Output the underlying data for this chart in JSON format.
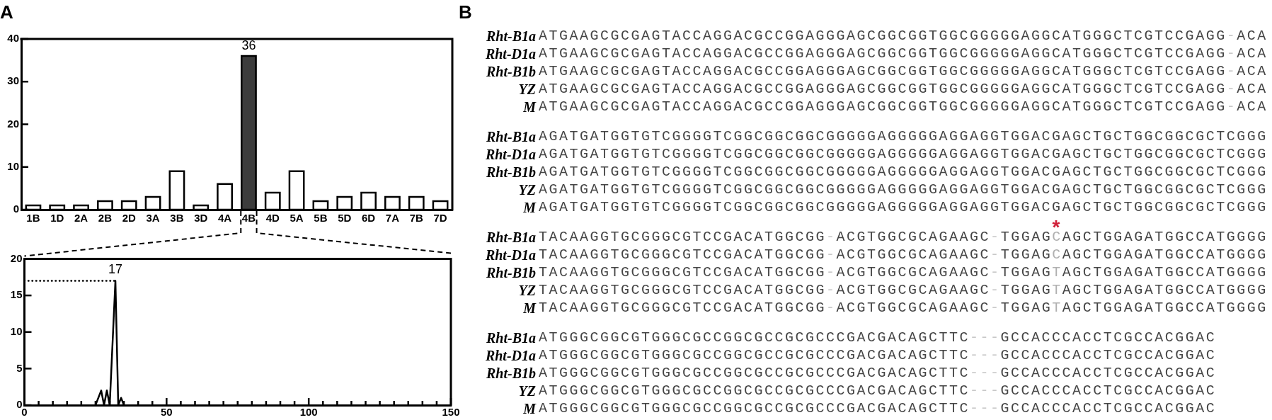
{
  "chart_data": [
    {
      "type": "bar",
      "title": "A",
      "categories": [
        "1B",
        "1D",
        "2A",
        "2B",
        "2D",
        "3A",
        "3B",
        "3D",
        "4A",
        "4B",
        "4D",
        "5A",
        "5B",
        "5D",
        "6D",
        "7A",
        "7B",
        "7D"
      ],
      "values": [
        1,
        1,
        1,
        2,
        2,
        3,
        9,
        1,
        6,
        36,
        4,
        9,
        2,
        3,
        4,
        3,
        3,
        2
      ],
      "colors": [
        "#ffffff",
        "#ffffff",
        "#ffffff",
        "#ffffff",
        "#ffffff",
        "#ffffff",
        "#ffffff",
        "#ffffff",
        "#ffffff",
        "#3c3c3c",
        "#ffffff",
        "#ffffff",
        "#ffffff",
        "#ffffff",
        "#ffffff",
        "#ffffff",
        "#ffffff",
        "#ffffff"
      ],
      "value_labels": [
        null,
        null,
        null,
        null,
        null,
        null,
        null,
        null,
        null,
        "36",
        null,
        null,
        null,
        null,
        null,
        null,
        null,
        null
      ],
      "ylim": [
        0,
        40
      ],
      "yticks": [
        0,
        10,
        20,
        30,
        40
      ]
    },
    {
      "type": "line",
      "series": [
        {
          "color": "#000000",
          "x": [
            25,
            27,
            28,
            29,
            30,
            32,
            33,
            34,
            35
          ],
          "values": [
            0,
            2,
            0,
            2,
            0,
            17,
            0,
            1,
            0
          ],
          "value_labels": [
            null,
            null,
            null,
            null,
            null,
            "17",
            null,
            null,
            null
          ]
        }
      ],
      "xlim": [
        0,
        150
      ],
      "xticks": [
        0,
        {
          "value": 5,
          "label": null
        },
        {
          "value": 10,
          "label": null
        },
        {
          "value": 15,
          "label": null
        },
        {
          "value": 20,
          "label": null
        },
        {
          "value": 25,
          "label": null
        },
        {
          "value": 30,
          "label": null
        },
        {
          "value": 35,
          "label": null
        },
        {
          "value": 40,
          "label": null
        },
        {
          "value": 45,
          "label": null
        },
        50,
        {
          "value": 55,
          "label": null
        },
        {
          "value": 60,
          "label": null
        },
        {
          "value": 65,
          "label": null
        },
        {
          "value": 70,
          "label": null
        },
        {
          "value": 75,
          "label": null
        },
        {
          "value": 80,
          "label": null
        },
        {
          "value": 85,
          "label": null
        },
        {
          "value": 90,
          "label": null
        },
        {
          "value": 95,
          "label": null
        },
        100,
        {
          "value": 105,
          "label": null
        },
        {
          "value": 110,
          "label": null
        },
        {
          "value": 115,
          "label": null
        },
        {
          "value": 120,
          "label": null
        },
        {
          "value": 125,
          "label": null
        },
        {
          "value": 130,
          "label": null
        },
        {
          "value": 135,
          "label": null
        },
        {
          "value": 140,
          "label": null
        },
        {
          "value": 145,
          "label": null
        },
        150
      ],
      "ylim": [
        0,
        20
      ],
      "yticks": [
        0,
        5,
        10,
        15,
        20
      ],
      "ref_lines": [
        {
          "axis": "y",
          "value": 17,
          "line_style": "dotted",
          "color": "#000000"
        }
      ],
      "marker": "none"
    },
    {
      "type": "other",
      "title": "B",
      "categories": [
        "Rht-B1a",
        "Rht-D1a",
        "Rht-B1b",
        "YZ",
        "M"
      ],
      "annotations": [
        "ATGAAGCGCGAGTACCAGGACGCCGGAGGGAGCGGCGGTGGCGGGGGAGGCATGGGCTCGTCCGAGG-ACA",
        "ATGAAGCGCGAGTACCAGGACGCCGGAGGGAGCGGCGGTGGCGGGGGAGGCATGGGCTCGTCCGAGG-ACA",
        "ATGAAGCGCGAGTACCAGGACGCCGGAGGGAGCGGCGGTGGCGGGGGAGGCATGGGCTCGTCCGAGG-ACA",
        "ATGAAGCGCGAGTACCAGGACGCCGGAGGGAGCGGCGGTGGCGGGGGAGGCATGGGCTCGTCCGAGG-ACA",
        "ATGAAGCGCGAGTACCAGGACGCCGGAGGGAGCGGCGGTGGCGGGGGAGGCATGGGCTCGTCCGAGG-ACA",
        "AGATGATGGTGTCGGGGTCGGCGGCGGCGGGGGAGGGGGAGGAGGTGGACGAGCTGCTGGCGGCGCTCGGG",
        "AGATGATGGTGTCGGGGTCGGCGGCGGCGGGGGAGGGGGAGGAGGTGGACGAGCTGCTGGCGGCGCTCGGG",
        "AGATGATGGTGTCGGGGTCGGCGGCGGCGGGGGAGGGGGAGGAGGTGGACGAGCTGCTGGCGGCGCTCGGG",
        "AGATGATGGTGTCGGGGTCGGCGGCGGCGGGGGAGGGGGAGGAGGTGGACGAGCTGCTGGCGGCGCTCGGG",
        "AGATGATGGTGTCGGGGTCGGCGGCGGCGGGGGAGGGGGAGGAGGTGGACGAGCTGCTGGCGGCGCTCGGG",
        "TACAAGGTGCGGGCGTCCGACATGGCGG-ACGTGGCGCAGAAGC-TGGAGCAGCTGGAGATGGCCATGGGG",
        "TACAAGGTGCGGGCGTCCGACATGGCGG-ACGTGGCGCAGAAGC-TGGAGCAGCTGGAGATGGCCATGGGG",
        "TACAAGGTGCGGGCGTCCGACATGGCGG-ACGTGGCGCAGAAGC-TGGAGTAGCTGGAGATGGCCATGGGG",
        "TACAAGGTGCGGGCGTCCGACATGGCGG-ACGTGGCGCAGAAGC-TGGAGTAGCTGGAGATGGCCATGGGG",
        "TACAAGGTGCGGGCGTCCGACATGGCGG-ACGTGGCGCAGAAGC-TGGAGTAGCTGGAGATGGCCATGGGG",
        "ATGGGCGGCGTGGGCGCCGGCGCCGCGCCCGACGACAGCTTC---GCCACCCACCTCGCCACGGAC",
        "ATGGGCGGCGTGGGCGCCGGCGCCGCGCCCGACGACAGCTTC---GCCACCCACCTCGCCACGGAC",
        "ATGGGCGGCGTGGGCGCCGGCGCCGCGCCCGACGACAGCTTC---GCCACCCACCTCGCCACGGAC",
        "ATGGGCGGCGTGGGCGCCGGCGCCGCGCCCGACGACAGCTTC---GCCACCCACCTCGCCACGGAC",
        "ATGGGCGGCGTGGGCGCCGGCGCCGCGCCCGACGACAGCTTC---GCCACCCACCTCGCCACGGAC",
        "*"
      ]
    }
  ]
}
